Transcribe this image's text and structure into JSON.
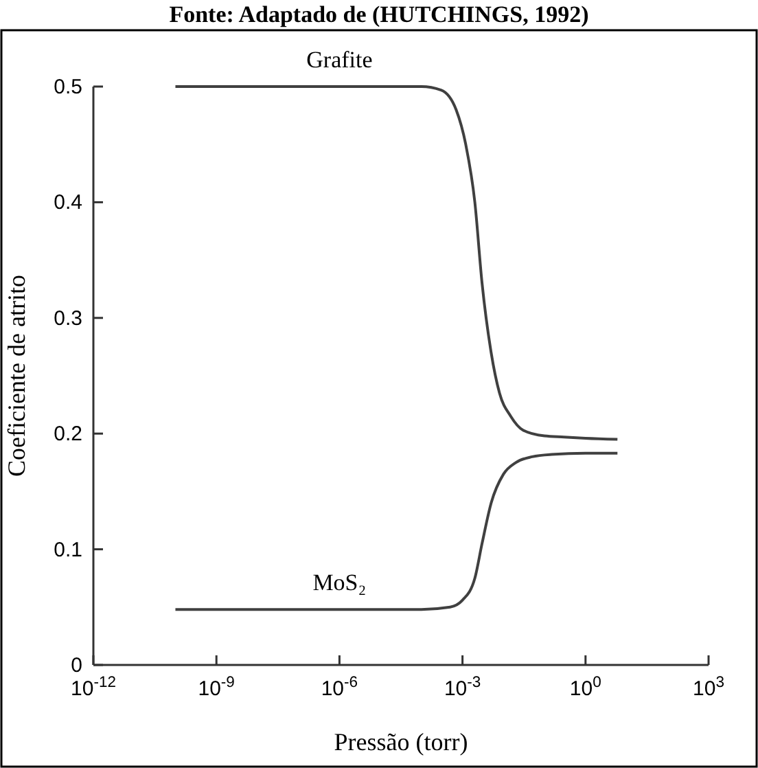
{
  "chart_data": {
    "type": "line",
    "title": "Fonte: Adaptado de (HUTCHINGS, 1992)",
    "xlabel": "Pressão (torr)",
    "ylabel": "Coeficiente de atrito",
    "log": "x",
    "xlim": [
      1e-12,
      1000
    ],
    "xticks": [
      {
        "value": 1e-12,
        "label": "10$^{-12}$"
      },
      {
        "value": 1e-09,
        "label": "10$^{-9}$"
      },
      {
        "value": 1e-06,
        "label": "10$^{-6}$"
      },
      {
        "value": 0.001,
        "label": "10$^{-3}$"
      },
      {
        "value": 1,
        "label": "10$^{0}$"
      },
      {
        "value": 1000,
        "label": "10$^{3}$"
      }
    ],
    "ylim": [
      0,
      0.5
    ],
    "yticks": [
      0,
      0.1,
      0.2,
      0.3,
      0.4,
      0.5
    ],
    "grid": false,
    "series": [
      {
        "color": "#404040",
        "x": [
          1e-10,
          1e-05,
          0.0001,
          0.0003,
          0.0007,
          0.0012,
          0.002,
          0.003,
          0.005,
          0.008,
          0.015,
          0.03,
          0.1,
          0.3,
          1,
          6
        ],
        "values": [
          0.5,
          0.5,
          0.5,
          0.497,
          0.48,
          0.45,
          0.4,
          0.33,
          0.27,
          0.235,
          0.215,
          0.203,
          0.198,
          0.197,
          0.196,
          0.195
        ]
      },
      {
        "color": "#404040",
        "x": [
          1e-10,
          0.0001,
          0.0005,
          0.001,
          0.002,
          0.003,
          0.005,
          0.01,
          0.02,
          0.05,
          0.15,
          1,
          6
        ],
        "values": [
          0.048,
          0.048,
          0.05,
          0.056,
          0.075,
          0.105,
          0.14,
          0.165,
          0.175,
          0.18,
          0.182,
          0.183,
          0.183
        ]
      }
    ],
    "annotations": [
      {
        "text": "Grafite",
        "x": 1e-06,
        "y": 0.5
      },
      {
        "text": "MoS₂",
        "x": 1e-06,
        "y": 0.048
      }
    ]
  }
}
